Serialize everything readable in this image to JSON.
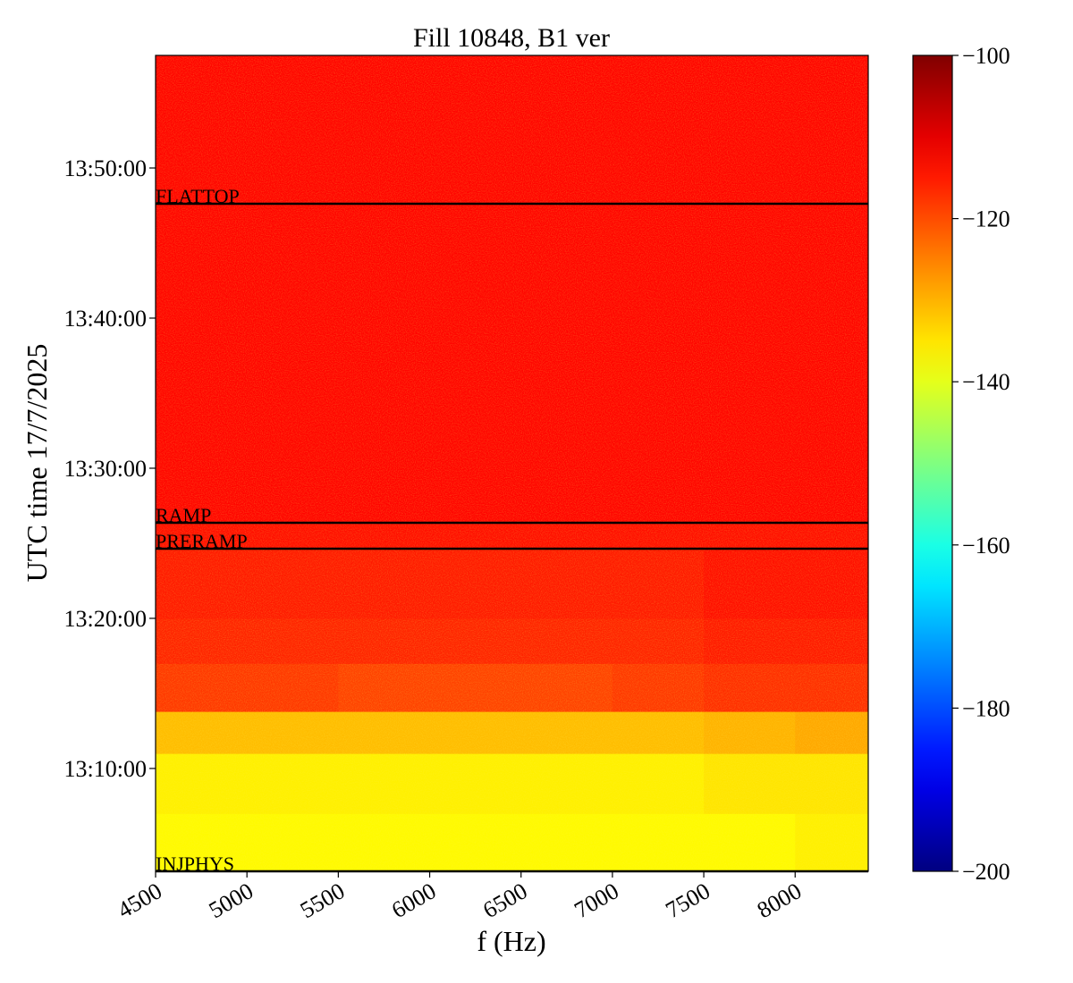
{
  "chart_data": {
    "type": "heatmap",
    "title": "Fill 10848, B1 ver",
    "x_label": "f (Hz)",
    "y_label": "UTC time 17/7/2025",
    "colormap": "jet",
    "x_edges": [
      4500,
      5000,
      5500,
      6000,
      6500,
      7000,
      7500,
      8000,
      8400
    ],
    "y_edges": [
      3.15,
      7,
      11,
      13.8,
      17,
      20,
      24.64,
      26.37,
      30,
      40,
      47.62,
      57.5
    ],
    "z": [
      [
        -137,
        -137,
        -137,
        -137,
        -137,
        -137,
        -137,
        -136
      ],
      [
        -136,
        -136,
        -136,
        -136,
        -136,
        -136,
        -135,
        -135
      ],
      [
        -131,
        -131,
        -131,
        -131,
        -131,
        -131,
        -130,
        -129
      ],
      [
        -118,
        -118,
        -119,
        -119,
        -119,
        -118,
        -117,
        -117
      ],
      [
        -116,
        -116,
        -116,
        -116,
        -116,
        -116,
        -115,
        -115
      ],
      [
        -115,
        -115,
        -115,
        -115,
        -115,
        -115,
        -114,
        -114
      ],
      [
        -114,
        -114,
        -114,
        -114,
        -114,
        -114,
        -114,
        -114
      ],
      [
        -113,
        -113,
        -113,
        -113,
        -113,
        -113,
        -113,
        -113
      ],
      [
        -113,
        -113,
        -113,
        -113,
        -113,
        -113,
        -113,
        -113
      ],
      [
        -113,
        -113,
        -113,
        -113,
        -113,
        -113,
        -113,
        -113
      ],
      [
        -113,
        -113,
        -113,
        -113,
        -113,
        -113,
        -113,
        -113
      ]
    ],
    "xlim": [
      4500,
      8400
    ],
    "ylim": [
      3.15,
      57.5
    ],
    "xticks": [
      4500,
      5000,
      5500,
      6000,
      6500,
      7000,
      7500,
      8000
    ],
    "yticks": [
      {
        "value": 10,
        "label": "13:10:00"
      },
      {
        "value": 20,
        "label": "13:20:00"
      },
      {
        "value": 30,
        "label": "13:30:00"
      },
      {
        "value": 40,
        "label": "13:40:00"
      },
      {
        "value": 50,
        "label": "13:50:00"
      }
    ],
    "clim": [
      -200,
      -100
    ],
    "cticks": [
      {
        "value": -100,
        "label": "−100"
      },
      {
        "value": -120,
        "label": "−120"
      },
      {
        "value": -140,
        "label": "−140"
      },
      {
        "value": -160,
        "label": "−160"
      },
      {
        "value": -180,
        "label": "−180"
      },
      {
        "value": -200,
        "label": "−200"
      }
    ],
    "annotations": [
      {
        "label": "FLATTOP",
        "y": 47.62
      },
      {
        "label": "RAMP",
        "y": 26.37
      },
      {
        "label": "PRERAMP",
        "y": 24.64
      },
      {
        "label": "INJPHYS",
        "y": 3.15
      }
    ]
  }
}
